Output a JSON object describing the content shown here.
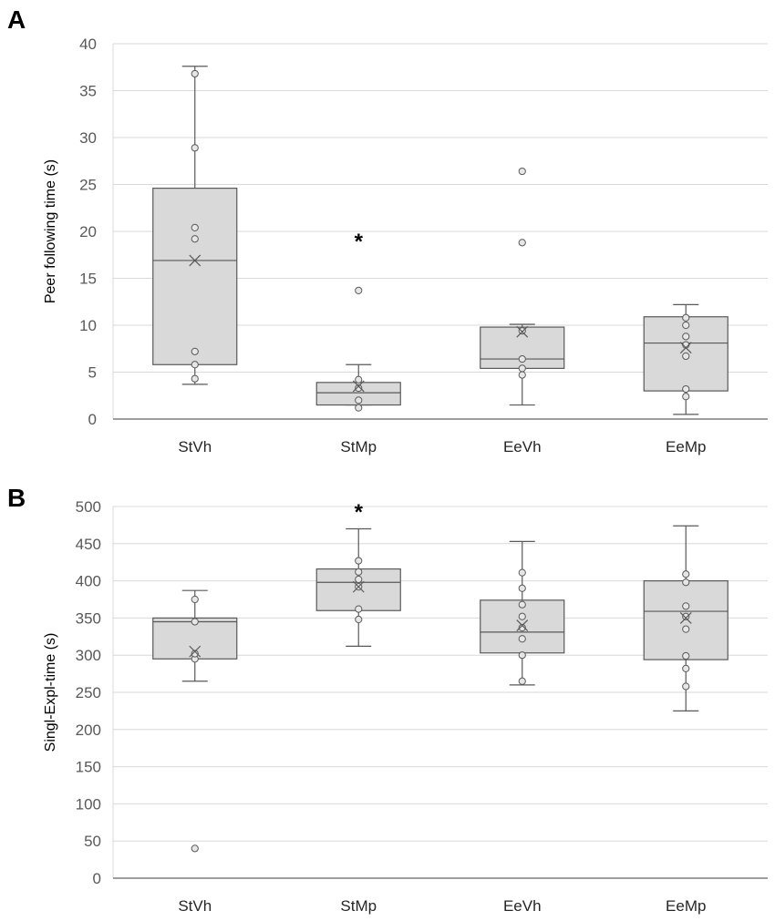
{
  "chart_data": [
    {
      "panel": "A",
      "type": "box",
      "title": "",
      "xlabel": "",
      "ylabel": "Peer following time (s)",
      "ylim": [
        0,
        40
      ],
      "ytick_step": 5,
      "yticks": [
        "0",
        "5",
        "10",
        "15",
        "20",
        "25",
        "30",
        "35",
        "40"
      ],
      "grid": true,
      "categories": [
        "StVh",
        "StMp",
        "EeVh",
        "EeMp"
      ],
      "significance": [
        "",
        "*",
        "",
        ""
      ],
      "star_value": 19.5,
      "boxes": [
        {
          "name": "StVh",
          "whisker_low": 3.7,
          "q1": 5.8,
          "median": 16.9,
          "q3": 24.6,
          "whisker_high": 37.6,
          "mean": 16.9,
          "points": [
            4.3,
            5.8,
            7.2,
            19.2,
            20.4,
            28.9,
            36.8
          ]
        },
        {
          "name": "StMp",
          "whisker_low": 1.5,
          "q1": 1.5,
          "median": 2.8,
          "q3": 3.9,
          "whisker_high": 5.8,
          "mean": 3.5,
          "points": [
            1.2,
            2.0,
            3.3,
            4.2,
            13.7
          ]
        },
        {
          "name": "EeVh",
          "whisker_low": 1.5,
          "q1": 5.4,
          "median": 6.4,
          "q3": 9.8,
          "whisker_high": 10.1,
          "mean": 9.3,
          "points": [
            4.7,
            5.4,
            6.4,
            9.4,
            18.8,
            26.4
          ]
        },
        {
          "name": "EeMp",
          "whisker_low": 0.5,
          "q1": 3.0,
          "median": 8.1,
          "q3": 10.9,
          "whisker_high": 12.2,
          "mean": 7.6,
          "points": [
            2.4,
            3.2,
            6.7,
            7.9,
            8.8,
            10.0,
            10.8
          ]
        }
      ]
    },
    {
      "panel": "B",
      "type": "box",
      "title": "",
      "xlabel": "",
      "ylabel": "Singl-Expl-time (s)",
      "ylim": [
        0,
        500
      ],
      "ytick_step": 50,
      "yticks": [
        "0",
        "50",
        "100",
        "150",
        "200",
        "250",
        "300",
        "350",
        "400",
        "450",
        "500"
      ],
      "grid": true,
      "categories": [
        "StVh",
        "StMp",
        "EeVh",
        "EeMp"
      ],
      "significance": [
        "",
        "*",
        "",
        ""
      ],
      "star_value": 500,
      "boxes": [
        {
          "name": "StVh",
          "whisker_low": 265,
          "q1": 295,
          "median": 345,
          "q3": 350,
          "whisker_high": 387,
          "mean": 305,
          "points": [
            40,
            295,
            302,
            345,
            375
          ]
        },
        {
          "name": "StMp",
          "whisker_low": 312,
          "q1": 360,
          "median": 398,
          "q3": 416,
          "whisker_high": 470,
          "mean": 392,
          "points": [
            348,
            362,
            392,
            402,
            412,
            427
          ]
        },
        {
          "name": "EeVh",
          "whisker_low": 260,
          "q1": 303,
          "median": 331,
          "q3": 374,
          "whisker_high": 453,
          "mean": 340,
          "points": [
            265,
            300,
            322,
            337,
            352,
            368,
            390,
            411
          ]
        },
        {
          "name": "EeMp",
          "whisker_low": 225,
          "q1": 294,
          "median": 359,
          "q3": 400,
          "whisker_high": 474,
          "mean": 350,
          "points": [
            258,
            282,
            299,
            335,
            352,
            366,
            398,
            409
          ]
        }
      ]
    }
  ]
}
